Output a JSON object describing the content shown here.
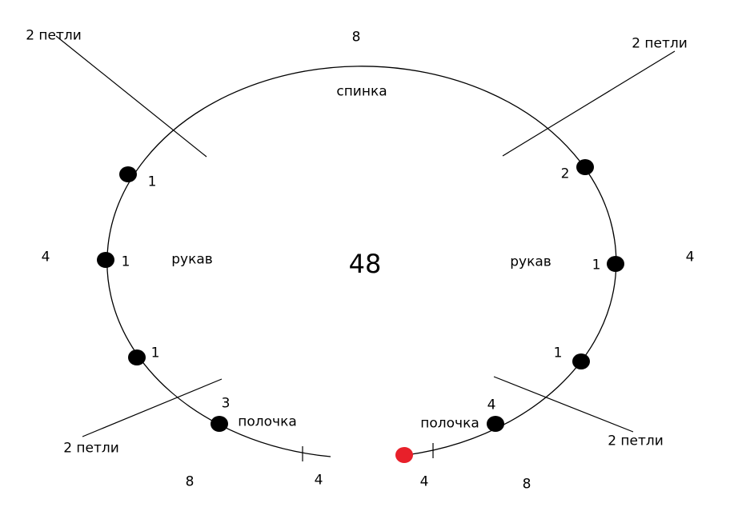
{
  "center_total": "48",
  "sections": {
    "back": {
      "label": "спинка",
      "count": "8"
    },
    "left_sleeve": {
      "label": "рукав",
      "count": "4"
    },
    "right_sleeve": {
      "label": "рукав",
      "count": "4"
    },
    "left_front": {
      "label": "полочка",
      "count": "8",
      "edge_count": "4"
    },
    "right_front": {
      "label": "полочка",
      "count": "8",
      "edge_count": "4"
    }
  },
  "raglan_labels": {
    "top_left": "2 петли",
    "top_right": "2 петли",
    "bottom_left": "2 петли",
    "bottom_right": "2 петли"
  },
  "markers": {
    "left_upper": "1",
    "left_middle": "1",
    "left_lower": "1",
    "left_front": "3",
    "right_upper": "2",
    "right_middle": "1",
    "right_lower": "1",
    "right_front": "4"
  },
  "colors": {
    "line": "#000000",
    "marker": "#000000",
    "start_marker": "#e8202a"
  }
}
